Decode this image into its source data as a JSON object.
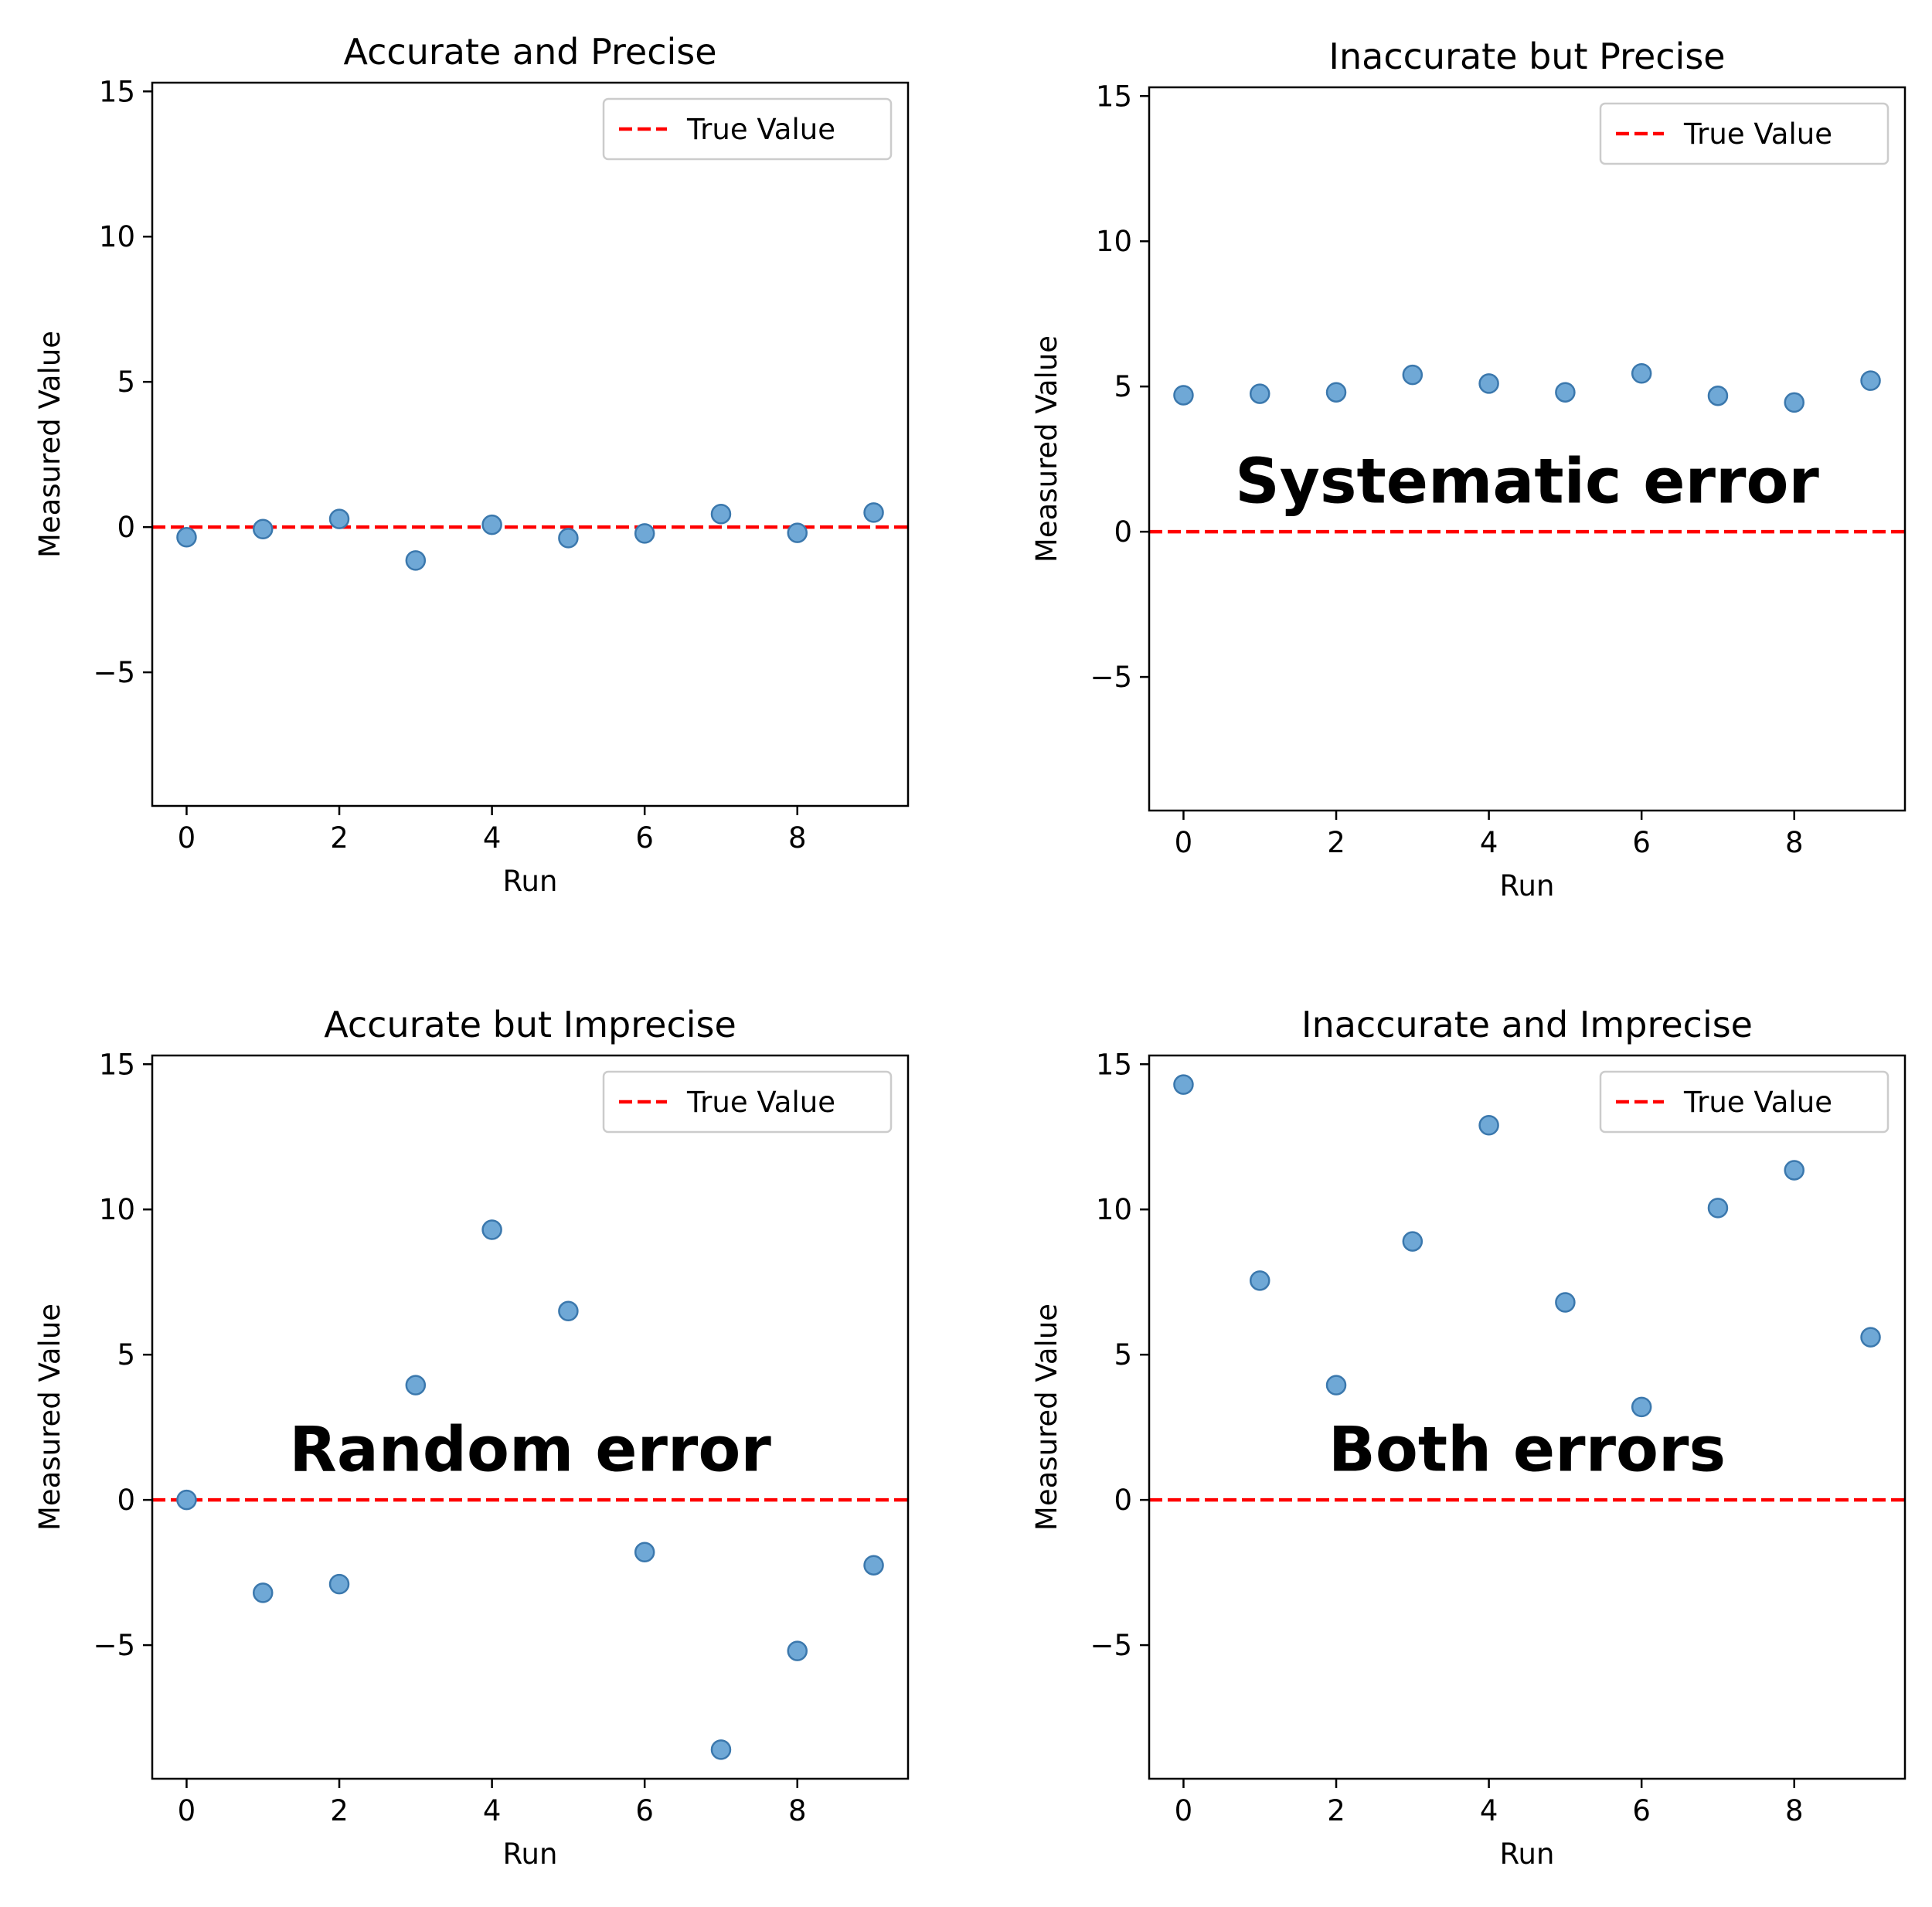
{
  "colors": {
    "point_fill": "#6fa8d6",
    "point_edge": "#3b78ad",
    "true_value_line": "#ff0000"
  },
  "chart_data": [
    {
      "type": "scatter",
      "title": "Accurate and Precise",
      "xlabel": "Run",
      "ylabel": "Measured Value",
      "xlim": [
        -0.45,
        9.45
      ],
      "ylim": [
        -9.6,
        15.3
      ],
      "xticks": [
        0,
        2,
        4,
        6,
        8
      ],
      "yticks": [
        -5,
        0,
        5,
        10,
        15
      ],
      "x": [
        0,
        1,
        2,
        3,
        4,
        5,
        6,
        7,
        8,
        9
      ],
      "y": [
        -0.35,
        -0.07,
        0.28,
        -1.15,
        0.08,
        -0.38,
        -0.22,
        0.45,
        -0.2,
        0.5
      ],
      "reference_line": {
        "y": 0,
        "label": "True Value",
        "style": "dashed"
      },
      "legend": {
        "position": "upper right",
        "entries": [
          "True Value"
        ]
      },
      "annotation": "",
      "grid": false
    },
    {
      "type": "scatter",
      "title": "Inaccurate but Precise",
      "xlabel": "Run",
      "ylabel": "Measured Value",
      "xlim": [
        -0.45,
        9.45
      ],
      "ylim": [
        -9.6,
        15.3
      ],
      "xticks": [
        0,
        2,
        4,
        6,
        8
      ],
      "yticks": [
        -5,
        0,
        5,
        10,
        15
      ],
      "x": [
        0,
        1,
        2,
        3,
        4,
        5,
        6,
        7,
        8,
        9
      ],
      "y": [
        4.7,
        4.75,
        4.8,
        5.4,
        5.1,
        4.8,
        5.45,
        4.68,
        4.45,
        5.2
      ],
      "reference_line": {
        "y": 0,
        "label": "True Value",
        "style": "dashed"
      },
      "legend": {
        "position": "upper right",
        "entries": [
          "True Value"
        ]
      },
      "annotation": "Systematic error",
      "annotation_pos": {
        "x": 4.5,
        "y": 1.0
      },
      "grid": false
    },
    {
      "type": "scatter",
      "title": "Accurate but Imprecise",
      "xlabel": "Run",
      "ylabel": "Measured Value",
      "xlim": [
        -0.45,
        9.45
      ],
      "ylim": [
        -9.6,
        15.3
      ],
      "xticks": [
        0,
        2,
        4,
        6,
        8
      ],
      "yticks": [
        -5,
        0,
        5,
        10,
        15
      ],
      "x": [
        0,
        1,
        2,
        3,
        4,
        5,
        6,
        7,
        8,
        9
      ],
      "y": [
        0.0,
        -3.2,
        -2.9,
        3.95,
        9.3,
        6.5,
        -1.8,
        -8.6,
        -5.2,
        -2.25
      ],
      "reference_line": {
        "y": 0,
        "label": "True Value",
        "style": "dashed"
      },
      "legend": {
        "position": "upper right",
        "entries": [
          "True Value"
        ]
      },
      "annotation": "Random error",
      "annotation_pos": {
        "x": 4.5,
        "y": 1.0
      },
      "grid": false
    },
    {
      "type": "scatter",
      "title": "Inaccurate and Imprecise",
      "xlabel": "Run",
      "ylabel": "Measured Value",
      "xlim": [
        -0.45,
        9.45
      ],
      "ylim": [
        -9.6,
        15.3
      ],
      "xticks": [
        0,
        2,
        4,
        6,
        8
      ],
      "yticks": [
        -5,
        0,
        5,
        10,
        15
      ],
      "x": [
        0,
        1,
        2,
        3,
        4,
        5,
        6,
        7,
        8,
        9
      ],
      "y": [
        14.3,
        7.55,
        3.95,
        8.9,
        12.9,
        6.8,
        3.2,
        10.05,
        11.35,
        5.6
      ],
      "reference_line": {
        "y": 0,
        "label": "True Value",
        "style": "dashed"
      },
      "legend": {
        "position": "upper right",
        "entries": [
          "True Value"
        ]
      },
      "annotation": "Both errors",
      "annotation_pos": {
        "x": 4.5,
        "y": 1.0
      },
      "grid": false
    }
  ]
}
